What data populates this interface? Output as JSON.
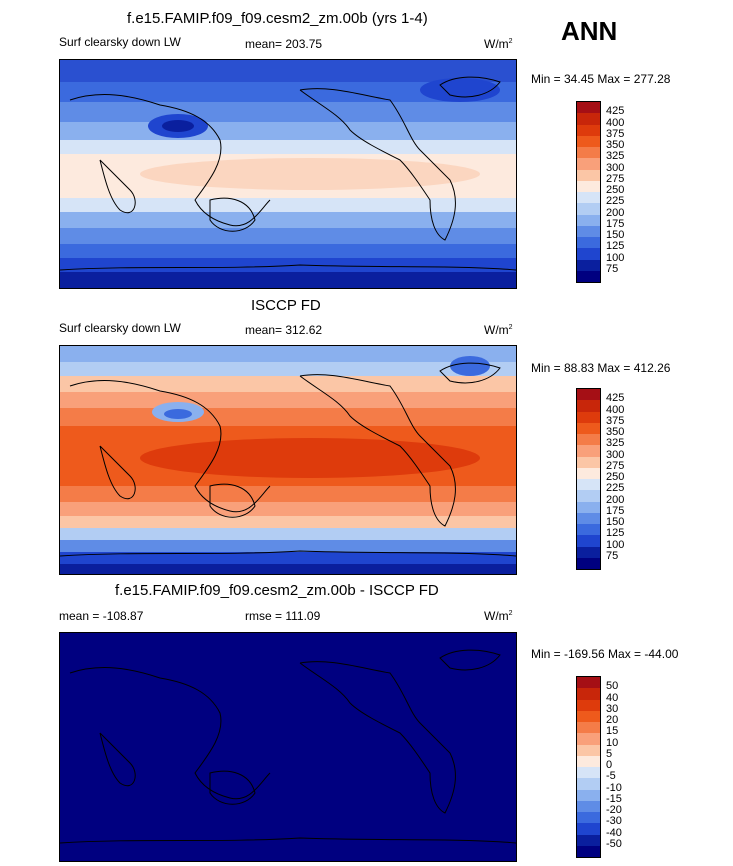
{
  "season": "ANN",
  "units_label": "W/m",
  "units_sup": "2",
  "panels": [
    {
      "title": "f.e15.FAMIP.f09_f09.cesm2_zm.00b (yrs 1-4)",
      "left_label": "Surf clearsky down LW",
      "center_label": "mean= 203.75",
      "minmax": "Min =  34.45 Max = 277.28"
    },
    {
      "title": "ISCCP FD",
      "left_label": "Surf clearsky down LW",
      "center_label": "mean= 312.62",
      "minmax": "Min =  88.83 Max = 412.26"
    },
    {
      "title": "f.e15.FAMIP.f09_f09.cesm2_zm.00b - ISCCP FD",
      "left_label": "mean = -108.87",
      "center_label": "rmse = 111.09",
      "minmax": "Min = -169.56 Max = -44.00"
    }
  ],
  "chart_data": [
    {
      "type": "heatmap",
      "title": "f.e15.FAMIP.f09_f09.cesm2_zm.00b (yrs 1-4)",
      "variable": "Surf clearsky down LW",
      "mean": 203.75,
      "min": 34.45,
      "max": 277.28,
      "levels": [
        "425",
        "400",
        "375",
        "350",
        "325",
        "300",
        "275",
        "250",
        "225",
        "200",
        "175",
        "150",
        "125",
        "100",
        "75"
      ],
      "colors": [
        "#a50f15",
        "#c8260a",
        "#de3b0c",
        "#ee5a1c",
        "#f47c48",
        "#f9a07a",
        "#fbc6a6",
        "#fdeade",
        "#d6e4f7",
        "#b2cdf3",
        "#8ab0ee",
        "#5f8ce6",
        "#3b6ade",
        "#1f45cf",
        "#0a1f9e",
        "#000080"
      ]
    },
    {
      "type": "heatmap",
      "title": "ISCCP FD",
      "variable": "Surf clearsky down LW",
      "mean": 312.62,
      "min": 88.83,
      "max": 412.26,
      "levels": [
        "425",
        "400",
        "375",
        "350",
        "325",
        "300",
        "275",
        "250",
        "225",
        "200",
        "175",
        "150",
        "125",
        "100",
        "75"
      ],
      "colors": [
        "#a50f15",
        "#c8260a",
        "#de3b0c",
        "#ee5a1c",
        "#f47c48",
        "#f9a07a",
        "#fbc6a6",
        "#fdeade",
        "#d6e4f7",
        "#b2cdf3",
        "#8ab0ee",
        "#5f8ce6",
        "#3b6ade",
        "#1f45cf",
        "#0a1f9e",
        "#000080"
      ]
    },
    {
      "type": "heatmap",
      "title": "f.e15.FAMIP.f09_f09.cesm2_zm.00b - ISCCP FD",
      "mean": -108.87,
      "rmse": 111.09,
      "min": -169.56,
      "max": -44.0,
      "levels": [
        "50",
        "40",
        "30",
        "20",
        "15",
        "10",
        "5",
        "0",
        "-5",
        "-10",
        "-15",
        "-20",
        "-30",
        "-40",
        "-50"
      ],
      "colors": [
        "#a50f15",
        "#c8260a",
        "#de3b0c",
        "#ee5a1c",
        "#f47c48",
        "#f9a07a",
        "#fbc6a6",
        "#fdeade",
        "#d6e4f7",
        "#b2cdf3",
        "#8ab0ee",
        "#5f8ce6",
        "#3b6ade",
        "#1f45cf",
        "#0a1f9e",
        "#000080"
      ]
    }
  ]
}
